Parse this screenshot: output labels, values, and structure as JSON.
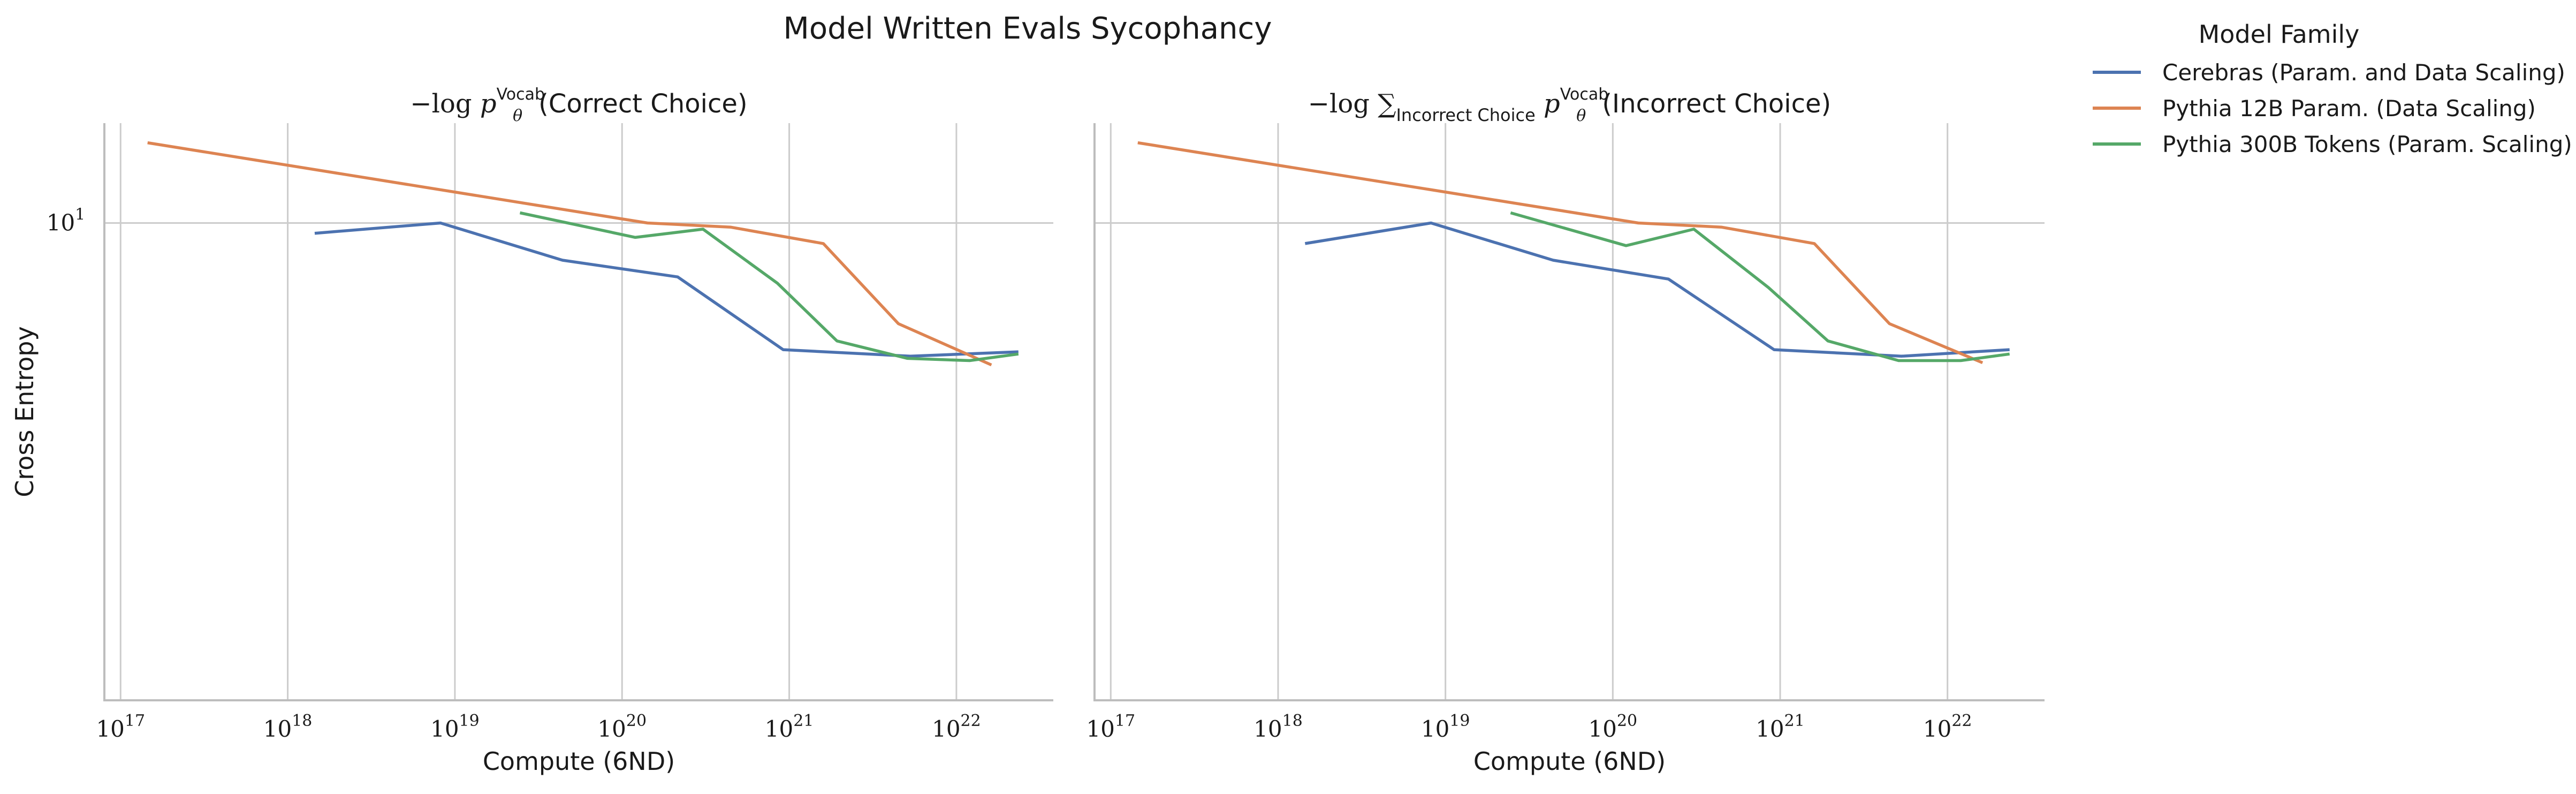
{
  "figure_title": "Model Written Evals Sycophancy",
  "legend": {
    "title": "Model Family",
    "placement": "outside-top-right"
  },
  "colors": {
    "Cerebras (Param. and Data Scaling)": "#4c72b0",
    "Pythia 12B Param. (Data Scaling)": "#dd8452",
    "Pythia 300B Tokens (Param. Scaling)": "#55a868",
    "grid": "#cccccc"
  },
  "chart_data": [
    {
      "type": "line",
      "title_math_prefix": "−log p",
      "title_sub": "θ",
      "title_sup": "Vocab",
      "title_suffix": "(Correct Choice)",
      "xlabel": "Compute (6ND)",
      "ylabel": "Cross Entropy",
      "xscale": "log",
      "yscale": "log",
      "xlim": [
        8e+16,
        3.8e+22
      ],
      "ylim": [
        7.92,
        10.5
      ],
      "xticks": [
        "10^17",
        "10^18",
        "10^19",
        "10^20",
        "10^21",
        "10^22"
      ],
      "yticks": [
        "10^1"
      ],
      "grid": true,
      "series": [
        {
          "name": "Cerebras (Param. and Data Scaling)",
          "x": [
            1.45e+18,
            8.2e+18,
            4.4e+19,
            2.15e+20,
            9.2e+20,
            5.3e+21,
            2.35e+22
          ],
          "y": [
            9.95,
            10.0,
            9.82,
            9.74,
            9.4,
            9.37,
            9.39
          ]
        },
        {
          "name": "Pythia 12B Param. (Data Scaling)",
          "x": [
            1.45e+17,
            1.42e+20,
            4.45e+20,
            1.6e+21,
            4.5e+21,
            1.62e+22
          ],
          "y": [
            10.4,
            10.0,
            9.98,
            9.9,
            9.52,
            9.33
          ]
        },
        {
          "name": "Pythia 300B Tokens (Param. Scaling)",
          "x": [
            2.45e+19,
            1.2e+20,
            3.05e+20,
            8.5e+20,
            1.93e+21,
            5.1e+21,
            1.2e+22,
            2.35e+22
          ],
          "y": [
            10.05,
            9.93,
            9.97,
            9.71,
            9.44,
            9.36,
            9.35,
            9.38
          ]
        }
      ]
    },
    {
      "type": "line",
      "title_math_prefix": "−log ∑",
      "title_sum_sub": "Incorrect Choice",
      "title_p": "p",
      "title_sub": "θ",
      "title_sup": "Vocab",
      "title_suffix": "(Incorrect Choice)",
      "xlabel": "Compute (6ND)",
      "ylabel": "",
      "xscale": "log",
      "yscale": "log",
      "xlim": [
        8e+16,
        3.8e+22
      ],
      "ylim": [
        7.92,
        10.5
      ],
      "xticks": [
        "10^17",
        "10^18",
        "10^19",
        "10^20",
        "10^21",
        "10^22"
      ],
      "yticks": [],
      "grid": true,
      "series": [
        {
          "name": "Cerebras (Param. and Data Scaling)",
          "x": [
            1.45e+18,
            8.2e+18,
            4.4e+19,
            2.15e+20,
            9.2e+20,
            5.3e+21,
            2.35e+22
          ],
          "y": [
            9.9,
            10.0,
            9.82,
            9.73,
            9.4,
            9.37,
            9.4
          ]
        },
        {
          "name": "Pythia 12B Param. (Data Scaling)",
          "x": [
            1.45e+17,
            1.42e+20,
            4.45e+20,
            1.6e+21,
            4.5e+21,
            1.62e+22
          ],
          "y": [
            10.4,
            10.0,
            9.98,
            9.9,
            9.52,
            9.34
          ]
        },
        {
          "name": "Pythia 300B Tokens (Param. Scaling)",
          "x": [
            2.45e+19,
            1.2e+20,
            3.05e+20,
            8.5e+20,
            1.93e+21,
            5.1e+21,
            1.2e+22,
            2.35e+22
          ],
          "y": [
            10.05,
            9.89,
            9.97,
            9.69,
            9.44,
            9.35,
            9.35,
            9.38
          ]
        }
      ]
    }
  ]
}
